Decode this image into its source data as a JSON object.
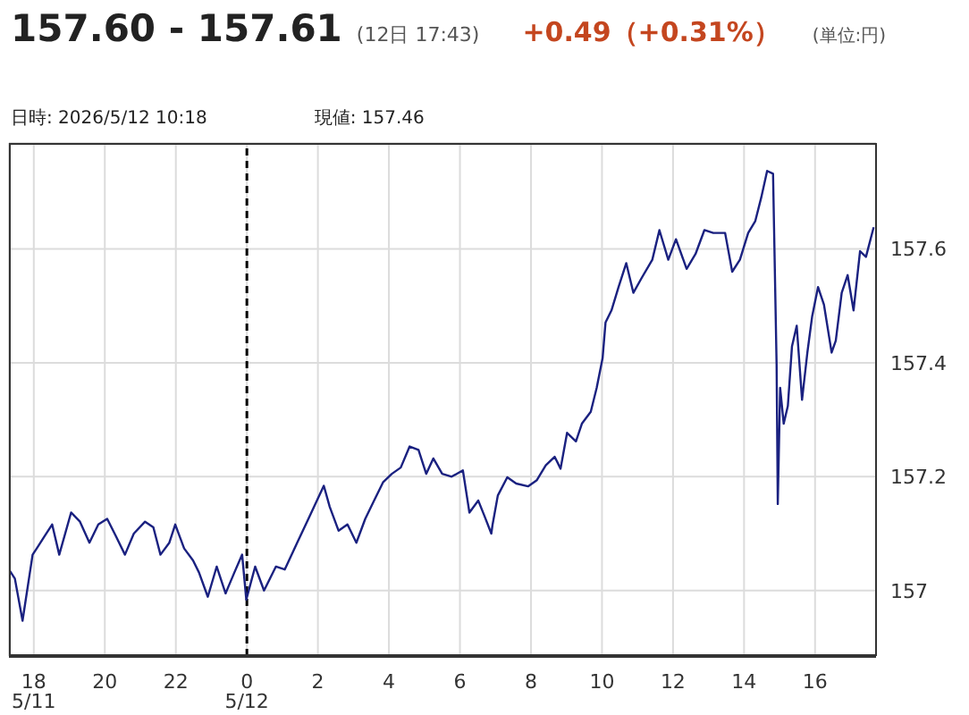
{
  "chart_data": {
    "type": "line",
    "title": "157.60 - 157.61",
    "annotations": [
      "(12日 17:43)",
      "+0.49（+0.31%）",
      "(単位:円)",
      "日時: 2026/5/12  10:18",
      "現値: 157.46"
    ],
    "series": [
      {
        "color": "#1a2180",
        "x": [
          "2026-05-11T17:18",
          "2026-05-11T17:28",
          "2026-05-11T17:41",
          "2026-05-11T17:58",
          "2026-05-11T18:05",
          "2026-05-11T18:18",
          "2026-05-11T18:31",
          "2026-05-11T18:43",
          "2026-05-11T19:03",
          "2026-05-11T19:18",
          "2026-05-11T19:34",
          "2026-05-11T19:49",
          "2026-05-11T20:04",
          "2026-05-11T20:19",
          "2026-05-11T20:34",
          "2026-05-11T20:49",
          "2026-05-11T21:08",
          "2026-05-11T21:22",
          "2026-05-11T21:34",
          "2026-05-11T21:49",
          "2026-05-11T21:59",
          "2026-05-11T22:14",
          "2026-05-11T22:29",
          "2026-05-11T22:39",
          "2026-05-11T22:54",
          "2026-05-11T23:09",
          "2026-05-11T23:24",
          "2026-05-11T23:39",
          "2026-05-11T23:52",
          "2026-05-11T23:59",
          "2026-05-12T00:14",
          "2026-05-12T00:29",
          "2026-05-12T00:49",
          "2026-05-12T01:04",
          "2026-05-12T01:25",
          "2026-05-12T01:44",
          "2026-05-12T02:10",
          "2026-05-12T02:20",
          "2026-05-12T02:35",
          "2026-05-12T02:50",
          "2026-05-12T03:05",
          "2026-05-12T03:20",
          "2026-05-12T03:35",
          "2026-05-12T03:50",
          "2026-05-12T04:05",
          "2026-05-12T04:20",
          "2026-05-12T04:35",
          "2026-05-12T04:50",
          "2026-05-12T05:03",
          "2026-05-12T05:15",
          "2026-05-12T05:30",
          "2026-05-12T05:46",
          "2026-05-12T06:05",
          "2026-05-12T06:16",
          "2026-05-12T06:31",
          "2026-05-12T06:41",
          "2026-05-12T06:53",
          "2026-05-12T06:55",
          "2026-05-12T07:04",
          "2026-05-12T07:20",
          "2026-05-12T07:35",
          "2026-05-12T07:55",
          "2026-05-12T08:10",
          "2026-05-12T08:25",
          "2026-05-12T08:40",
          "2026-05-12T08:50",
          "2026-05-12T09:01",
          "2026-05-12T09:16",
          "2026-05-12T09:26",
          "2026-05-12T09:41",
          "2026-05-12T09:51",
          "2026-05-12T10:01",
          "2026-05-12T10:06",
          "2026-05-12T10:16",
          "2026-05-12T10:28",
          "2026-05-12T10:41",
          "2026-05-12T10:53",
          "2026-05-12T11:07",
          "2026-05-12T11:25",
          "2026-05-12T11:37",
          "2026-05-12T11:52",
          "2026-05-12T12:05",
          "2026-05-12T12:23",
          "2026-05-12T12:38",
          "2026-05-12T12:53",
          "2026-05-12T13:08",
          "2026-05-12T13:28",
          "2026-05-12T13:40",
          "2026-05-12T13:53",
          "2026-05-12T14:07",
          "2026-05-12T14:19",
          "2026-05-12T14:29",
          "2026-05-12T14:39",
          "2026-05-12T14:49",
          "2026-05-12T14:55",
          "2026-05-12T14:57",
          "2026-05-12T15:01",
          "2026-05-12T15:07",
          "2026-05-12T15:14",
          "2026-05-12T15:21",
          "2026-05-12T15:29",
          "2026-05-12T15:38",
          "2026-05-12T15:47",
          "2026-05-12T15:55",
          "2026-05-12T16:05",
          "2026-05-12T16:15",
          "2026-05-12T16:28",
          "2026-05-12T16:35",
          "2026-05-12T16:45",
          "2026-05-12T16:55",
          "2026-05-12T17:05",
          "2026-05-12T17:16",
          "2026-05-12T17:26",
          "2026-05-12T17:39"
        ],
        "values": [
          157.037,
          157.021,
          156.947,
          157.063,
          157.074,
          157.095,
          157.116,
          157.063,
          157.137,
          157.121,
          157.084,
          157.116,
          157.126,
          157.095,
          157.063,
          157.1,
          157.121,
          157.111,
          157.063,
          157.084,
          157.116,
          157.074,
          157.053,
          157.032,
          156.989,
          157.042,
          156.995,
          157.032,
          157.063,
          156.984,
          157.042,
          157.0,
          157.042,
          157.037,
          157.084,
          157.126,
          157.184,
          157.147,
          157.105,
          157.116,
          157.084,
          157.126,
          157.158,
          157.19,
          157.205,
          157.216,
          157.253,
          157.247,
          157.205,
          157.232,
          157.205,
          157.2,
          157.211,
          157.137,
          157.158,
          157.132,
          157.1,
          157.115,
          157.167,
          157.199,
          157.188,
          157.183,
          157.194,
          157.22,
          157.235,
          157.214,
          157.277,
          157.262,
          157.293,
          157.314,
          157.356,
          157.408,
          157.471,
          157.492,
          157.533,
          157.575,
          157.523,
          157.549,
          157.581,
          157.633,
          157.581,
          157.617,
          157.565,
          157.591,
          157.633,
          157.628,
          157.628,
          157.56,
          157.581,
          157.628,
          157.649,
          157.69,
          157.737,
          157.732,
          157.397,
          157.152,
          157.356,
          157.293,
          157.324,
          157.429,
          157.465,
          157.335,
          157.418,
          157.481,
          157.533,
          157.502,
          157.418,
          157.439,
          157.523,
          157.554,
          157.492,
          157.596,
          157.586,
          157.638
        ]
      }
    ],
    "xlim": [
      "2026-05-11T17:18",
      "2026-05-12T17:43"
    ],
    "xticks": [
      {
        "value": "2026-05-11T18:00",
        "label": "18\n5/11"
      },
      {
        "value": "2026-05-11T20:00",
        "label": "20"
      },
      {
        "value": "2026-05-11T22:00",
        "label": "22"
      },
      {
        "value": "2026-05-12T00:00",
        "label": "0\n5/12"
      },
      {
        "value": "2026-05-12T02:00",
        "label": "2"
      },
      {
        "value": "2026-05-12T04:00",
        "label": "4"
      },
      {
        "value": "2026-05-12T06:00",
        "label": "6"
      },
      {
        "value": "2026-05-12T08:00",
        "label": "8"
      },
      {
        "value": "2026-05-12T10:00",
        "label": "10"
      },
      {
        "value": "2026-05-12T12:00",
        "label": "12"
      },
      {
        "value": "2026-05-12T14:00",
        "label": "14"
      },
      {
        "value": "2026-05-12T16:00",
        "label": "16"
      }
    ],
    "ylim": [
      156.885,
      157.786
    ],
    "yticks": [
      157,
      157.2,
      157.4,
      157.6
    ],
    "ref_lines": [
      {
        "axis": "x",
        "value": "2026-05-12T00:00",
        "color": "#000000",
        "line_style": "dashed"
      }
    ],
    "grid": true,
    "marker": "none",
    "line_style": "solid"
  }
}
